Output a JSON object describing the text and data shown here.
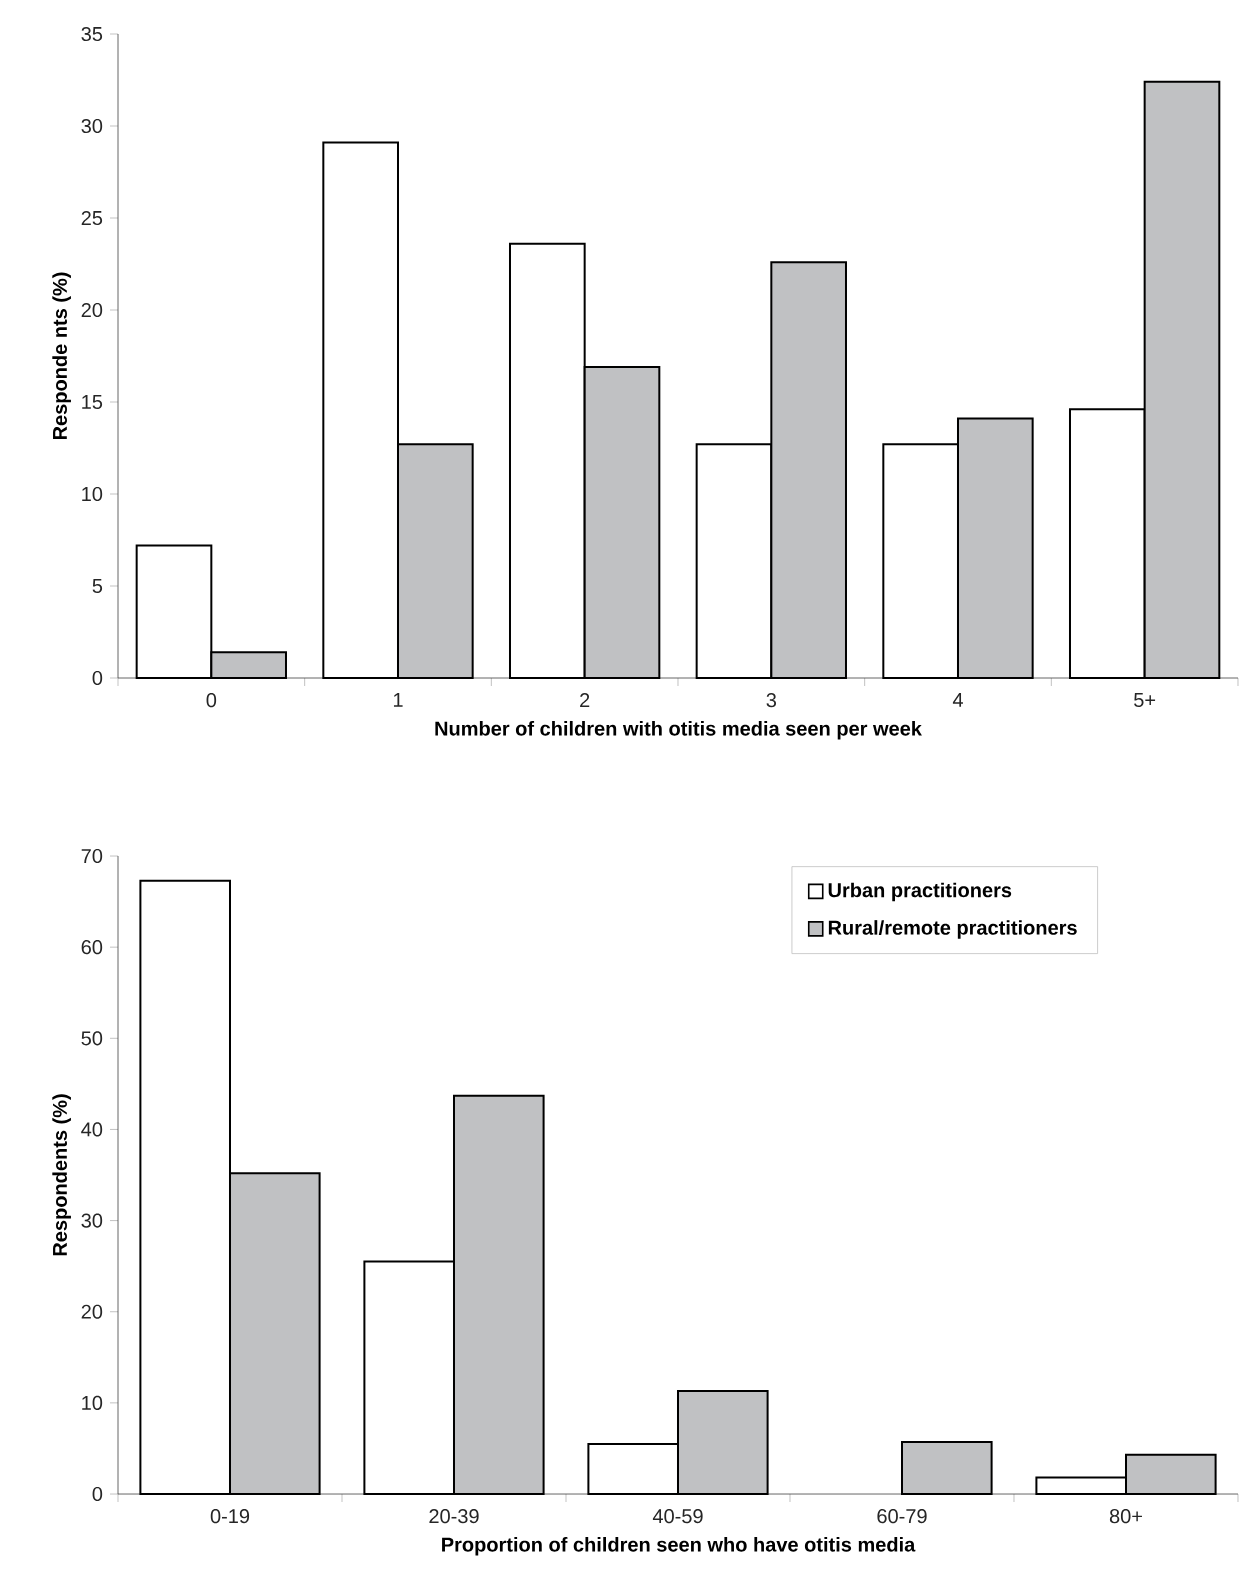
{
  "chart_data": [
    {
      "type": "bar",
      "xlabel": "Number of children with otitis media seen per week",
      "ylabel": "Responde nts (%)",
      "categories": [
        "0",
        "1",
        "2",
        "3",
        "4",
        "5+"
      ],
      "ylim": [
        0,
        35
      ],
      "yticks": [
        0,
        5,
        10,
        15,
        20,
        25,
        30,
        35
      ],
      "series": [
        {
          "color": "#ffffff",
          "values": [
            7.2,
            29.1,
            23.6,
            12.7,
            12.7,
            14.6
          ]
        },
        {
          "color": "#c0c1c3",
          "values": [
            1.4,
            12.7,
            16.9,
            22.6,
            14.1,
            32.4
          ]
        }
      ]
    },
    {
      "type": "bar",
      "xlabel": "Proportion of children seen who have otitis media",
      "ylabel": "Respondents (%)",
      "categories": [
        "0-19",
        "20-39",
        "40-59",
        "60-79",
        "80+"
      ],
      "ylim": [
        0,
        70
      ],
      "yticks": [
        0,
        10,
        20,
        30,
        40,
        50,
        60,
        70
      ],
      "legend": "top right",
      "series": [
        {
          "name": "Urban practitioners",
          "color": "#ffffff",
          "values": [
            67.3,
            25.5,
            5.5,
            null,
            1.8
          ]
        },
        {
          "name": "Rural/remote practitioners",
          "color": "#c0c1c3",
          "values": [
            35.2,
            43.7,
            11.3,
            5.7,
            4.3
          ]
        }
      ]
    }
  ]
}
